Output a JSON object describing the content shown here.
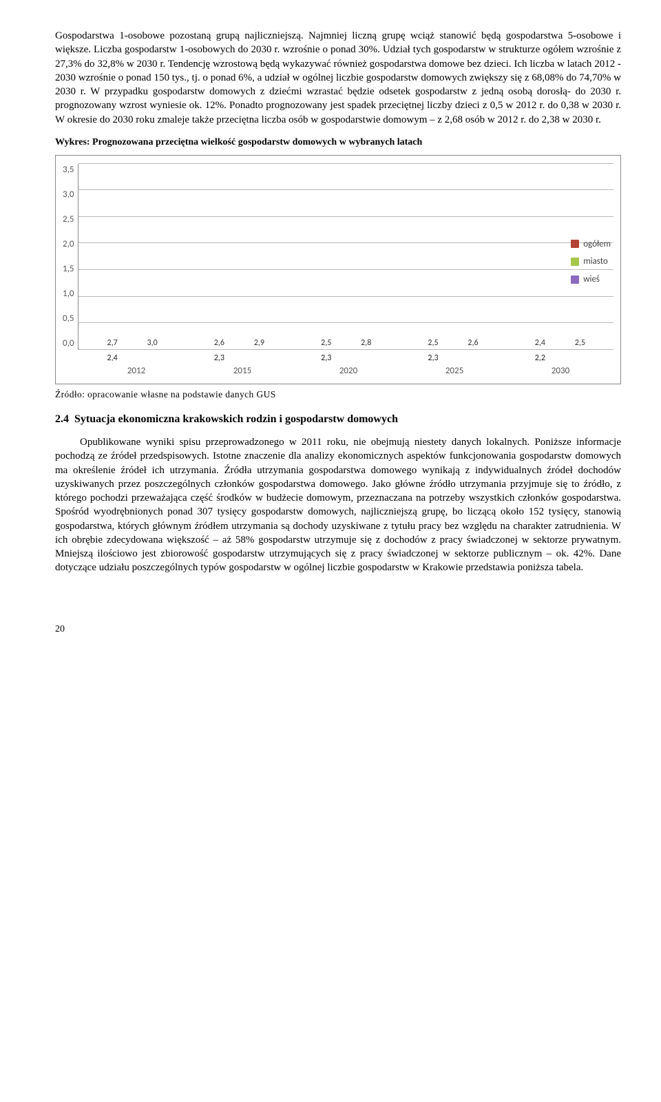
{
  "para1": "Gospodarstwa 1-osobowe pozostaną grupą najliczniejszą. Najmniej liczną grupę wciąż stanowić będą gospodarstwa 5-osobowe i większe. Liczba gospodarstw 1-osobowych do 2030 r. wzrośnie o  ponad 30%. Udział tych gospodarstw w strukturze ogółem wzrośnie z 27,3% do 32,8% w 2030 r. Tendencję wzrostową będą wykazywać również gospodarstwa domowe bez dzieci. Ich liczba w latach 2012 - 2030 wzrośnie o ponad 150 tys., tj. o ponad 6%, a udział w ogólnej liczbie gospodarstw domowych zwiększy się z  68,08% do 74,70% w 2030 r. W przypadku gospodarstw domowych z dziećmi wzrastać będzie odsetek gospodarstw z jedną osobą dorosłą- do 2030 r. prognozowany wzrost wyniesie ok. 12%. Ponadto prognozowany jest spadek przeciętnej liczby dzieci z 0,5 w 2012 r. do 0,38 w 2030 r. W okresie do 2030 roku zmaleje także przeciętna liczba osób w gospodarstwie domowym – z 2,68 osób w 2012 r. do 2,38 w 2030 r.",
  "chart_title": "Wykres: Prognozowana przeciętna wielkość  gospodarstw domowych w wybranych latach",
  "chart": {
    "ymax": 3.5,
    "ystep": 0.5,
    "yticks": [
      "0,0",
      "0,5",
      "1,0",
      "1,5",
      "2,0",
      "2,5",
      "3,0",
      "3,5"
    ],
    "categories": [
      "2012",
      "2015",
      "2020",
      "2025",
      "2030"
    ],
    "series": [
      {
        "name": "ogółem",
        "color": "red",
        "values": [
          2.7,
          2.6,
          2.5,
          2.5,
          2.4
        ],
        "labels": [
          "2,7",
          "2,6",
          "2,5",
          "2,5",
          "2,4"
        ],
        "inner": [
          "2,4",
          "2,3",
          "2,3",
          "2,3",
          "2,2"
        ]
      },
      {
        "name": "miasto",
        "color": "green",
        "values": [
          2.4,
          2.3,
          2.3,
          2.3,
          2.2
        ],
        "labels": [
          "",
          "",
          "",
          "",
          ""
        ]
      },
      {
        "name": "wieś",
        "color": "purple",
        "values": [
          3.0,
          2.9,
          2.8,
          2.6,
          2.5
        ],
        "labels": [
          "3,0",
          "2,9",
          "2,8",
          "2,6",
          "2,5"
        ]
      }
    ],
    "legend": [
      "ogółem",
      "miasto",
      "wieś"
    ]
  },
  "source": "Źródło: opracowanie własne na podstawie danych GUS",
  "section_no": "2.4",
  "section_title": "Sytuacja ekonomiczna krakowskich rodzin i gospodarstw domowych",
  "para2": "Opublikowane wyniki spisu przeprowadzonego w 2011 roku, nie obejmują niestety danych lokalnych. Poniższe informacje pochodzą ze źródeł przedspisowych. Istotne znaczenie dla analizy ekonomicznych aspektów funkcjonowania gospodarstw domowych ma określenie źródeł ich utrzymania. Źródła utrzymania gospodarstwa domowego wynikają z indywidualnych źródeł dochodów uzyskiwanych przez poszczególnych członków gospodarstwa domowego. Jako główne źródło utrzymania przyjmuje się to źródło, z którego pochodzi przeważająca część środków w budżecie domowym, przeznaczana na potrzeby wszystkich członków gospodarstwa. Spośród wyodrębnionych ponad 307 tysięcy gospodarstw domowych, najliczniejszą grupę, bo liczącą około 152 tysięcy, stanowią gospodarstwa, których głównym źródłem utrzymania są dochody uzyskiwane z tytułu pracy bez względu na charakter zatrudnienia. W ich obrębie zdecydowana większość – aż 58% gospodarstw utrzymuje się z dochodów z pracy świadczonej w sektorze prywatnym. Mniejszą ilościowo jest zbiorowość gospodarstw utrzymujących się z pracy świadczonej w sektorze publicznym – ok. 42%. Dane dotyczące udziału poszczególnych typów gospodarstw w ogólnej liczbie gospodarstw w Krakowie przedstawia poniższa tabela.",
  "page_number": "20"
}
